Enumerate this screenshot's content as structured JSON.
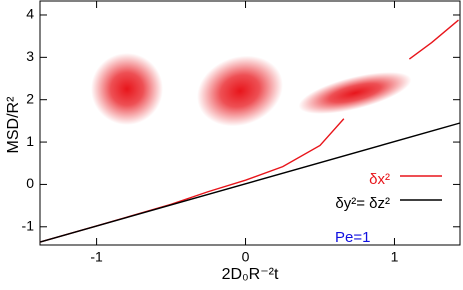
{
  "chart_data": {
    "type": "line",
    "x_label": "2D₀R⁻²t",
    "y_label": "MSD/R²",
    "xlim": [
      -1.38,
      1.44
    ],
    "ylim": [
      -1.43,
      4.33
    ],
    "xticks": [
      -1,
      0,
      1
    ],
    "yticks": [
      -1,
      0,
      1,
      2,
      3,
      4
    ],
    "series": [
      {
        "name": "δx²",
        "color": "#e8151b",
        "x": [
          -1.38,
          -1,
          -0.5,
          -0.25,
          0,
          0.25,
          0.5,
          0.66,
          null,
          1.1,
          1.25,
          1.43
        ],
        "values": [
          -1.36,
          -0.98,
          -0.47,
          -0.17,
          0.1,
          0.42,
          0.92,
          1.55,
          null,
          2.96,
          3.35,
          3.88
        ]
      },
      {
        "name": "δy²= δz²",
        "color": "#000000",
        "x": [
          -1.38,
          1.44
        ],
        "values": [
          -1.36,
          1.45
        ]
      }
    ],
    "annotation": "Pe=1",
    "annotation_color": "#1010e0"
  }
}
